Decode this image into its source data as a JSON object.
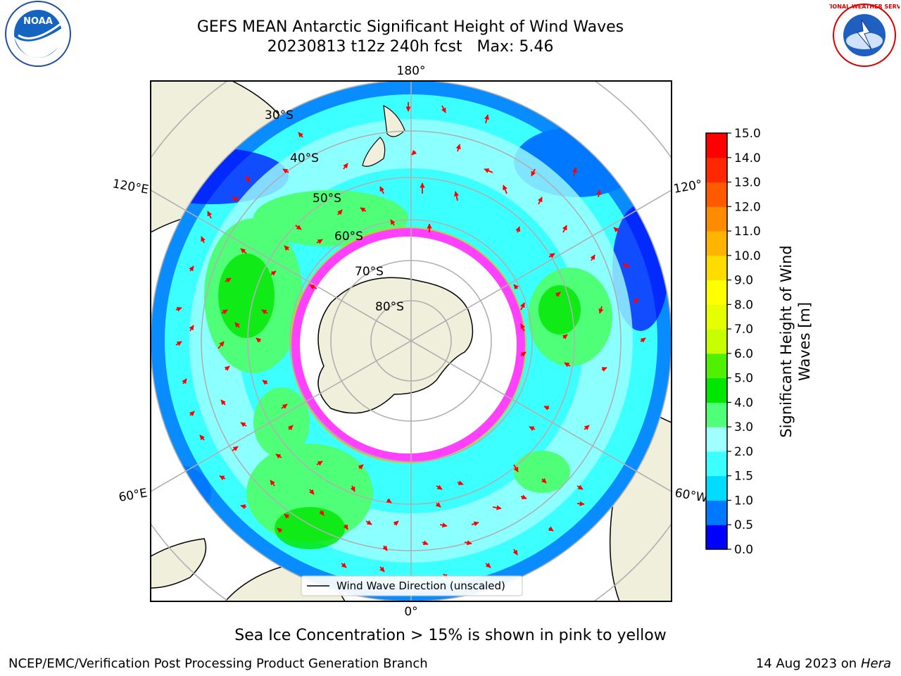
{
  "title": "GEFS MEAN Antarctic Significant Height of Wind Waves",
  "subtitle": "20230813 t12z 240h fcst   Max: 5.46",
  "caption": "Sea Ice Concentration > 15% is shown in pink to yellow",
  "footer": {
    "left": "NCEP/EMC/Verification Post Processing Product Generation Branch",
    "date": "14 Aug 2023 on",
    "host": "Hera"
  },
  "logos": {
    "noara": "NOAA",
    "nws": "NATIONAL WEATHER SERVICE"
  },
  "map": {
    "longitude_labels": {
      "top": "180°",
      "bottom": "0°",
      "upper_left": "120°E",
      "upper_right": "120°",
      "lower_left": "60°E",
      "lower_right": "60°W"
    },
    "latitude_labels": [
      "30°S",
      "40°S",
      "50°S",
      "60°S",
      "70°S",
      "80°S"
    ],
    "legend": "Wind Wave Direction (unscaled)"
  },
  "colorbar": {
    "label_line1": "Significant Height of Wind",
    "label_line2": "Waves [m]",
    "ticks": [
      "0.0",
      "0.5",
      "1.0",
      "1.5",
      "2.0",
      "3.0",
      "4.0",
      "5.0",
      "6.0",
      "7.0",
      "8.0",
      "9.0",
      "10.0",
      "11.0",
      "12.0",
      "13.0",
      "14.0",
      "15.0"
    ],
    "colors": [
      "#0000ff",
      "#0078ff",
      "#00dcff",
      "#3cffff",
      "#a0ffff",
      "#50ff78",
      "#00e600",
      "#50f000",
      "#c8ff00",
      "#e6ff00",
      "#ffff00",
      "#ffdc00",
      "#ffb400",
      "#ff8c00",
      "#ff5a00",
      "#ff2800",
      "#ff0000"
    ]
  },
  "colors": {
    "land": "#efefdc",
    "ocean_low": "#3cffff",
    "ice_edge": "#ff40ff",
    "arrow": "#ff0000"
  }
}
